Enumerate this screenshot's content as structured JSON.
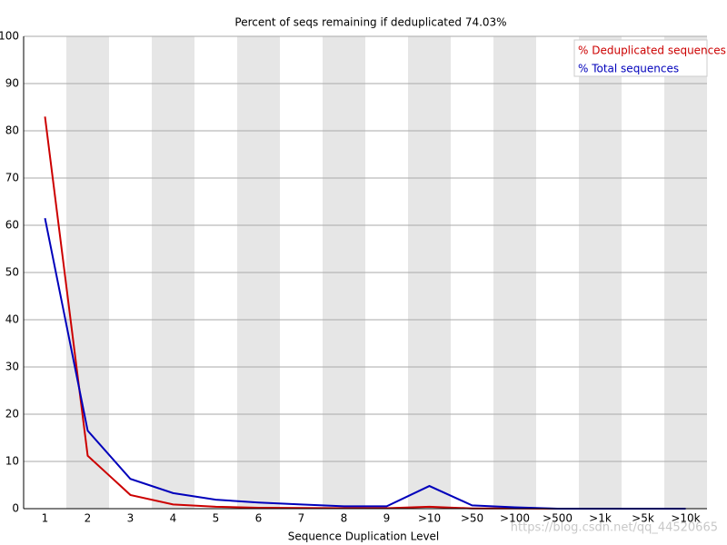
{
  "chart_data": {
    "type": "line",
    "title": "Percent of seqs remaining if deduplicated 74.03%",
    "x_label": "Sequence Duplication Level",
    "categories": [
      "1",
      "2",
      "3",
      "4",
      "5",
      "6",
      "7",
      "8",
      "9",
      ">10",
      ">50",
      ">100",
      ">500",
      ">1k",
      ">5k",
      ">10k"
    ],
    "series": [
      {
        "name": "% Deduplicated sequences",
        "color": "#cc0000",
        "values": [
          83,
          11.2,
          2.9,
          0.9,
          0.4,
          0.2,
          0.15,
          0.1,
          0.1,
          0.4,
          0.05,
          0.05,
          0,
          0,
          0,
          0
        ]
      },
      {
        "name": "% Total sequences",
        "color": "#0000bb",
        "values": [
          61.5,
          16.5,
          6.3,
          3.3,
          1.9,
          1.3,
          0.9,
          0.5,
          0.5,
          4.8,
          0.7,
          0.3,
          0,
          0,
          0,
          0
        ]
      }
    ],
    "ylim": [
      0,
      100
    ],
    "yticks": [
      0,
      10,
      20,
      30,
      40,
      50,
      60,
      70,
      80,
      90,
      100
    ],
    "grid": true,
    "legend": "top-right",
    "watermark": "https://blog.csdn.net/qq_44520665"
  }
}
